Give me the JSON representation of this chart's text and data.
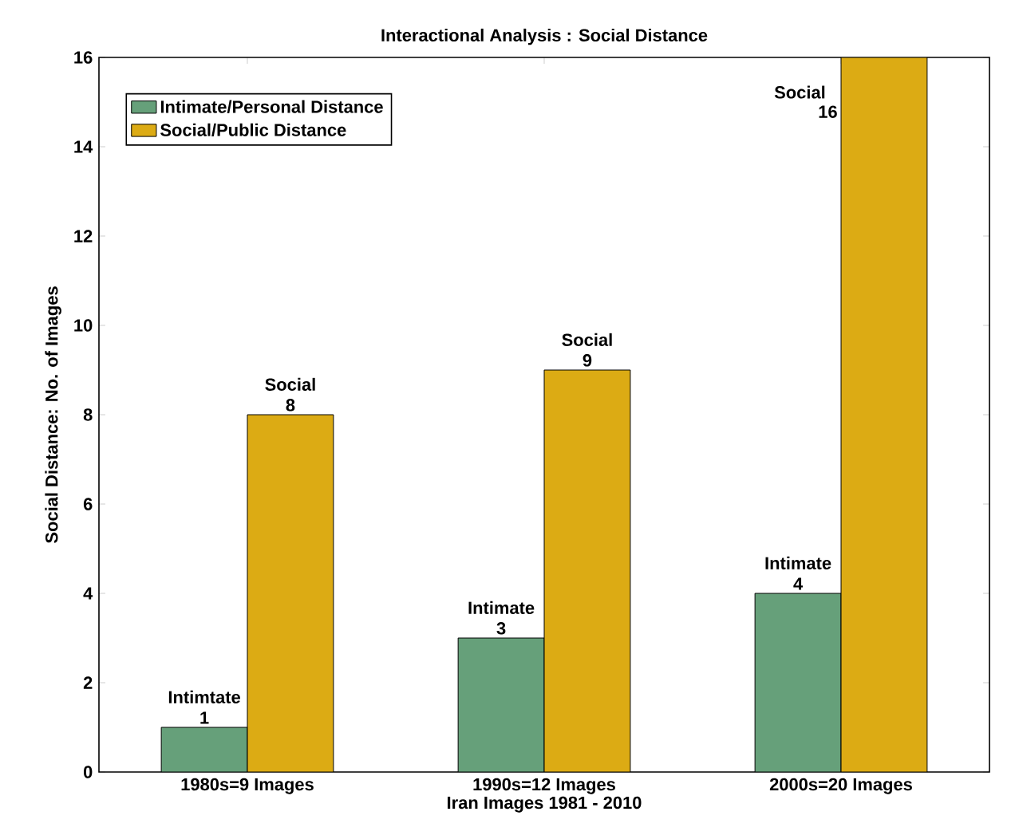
{
  "chart_data": {
    "type": "bar",
    "title": "Interactional Analysis : Social Distance",
    "xlabel": "Iran Images 1981 - 2010",
    "ylabel": "Social Distance: No. of Images",
    "categories": [
      "1980s=9 Images",
      "1990s=12 Images",
      "2000s=20 Images"
    ],
    "series": [
      {
        "name": "Intimate/Personal Distance",
        "color": "#66a07a",
        "values": [
          1,
          3,
          4
        ]
      },
      {
        "name": "Social/Public Distance",
        "color": "#dcab14",
        "values": [
          8,
          9,
          16
        ]
      }
    ],
    "ylim": [
      0,
      16
    ],
    "yticks": [
      0,
      2,
      4,
      6,
      8,
      10,
      12,
      14,
      16
    ],
    "data_labels": true,
    "legend": "top left",
    "grid": false,
    "annotations": [
      {
        "text": "Intimtate",
        "x": "1980s=9 Images",
        "y": 1
      },
      {
        "text": "Social",
        "x": "1980s=9 Images",
        "y": 8
      },
      {
        "text": "Intimate",
        "x": "1990s=12 Images",
        "y": 3
      },
      {
        "text": "Social",
        "x": "1990s=12 Images",
        "y": 9
      },
      {
        "text": "Intimate",
        "x": "2000s=20 Images",
        "y": 4
      },
      {
        "text": "Social",
        "x": "2000s=20 Images",
        "y": 16
      }
    ]
  }
}
